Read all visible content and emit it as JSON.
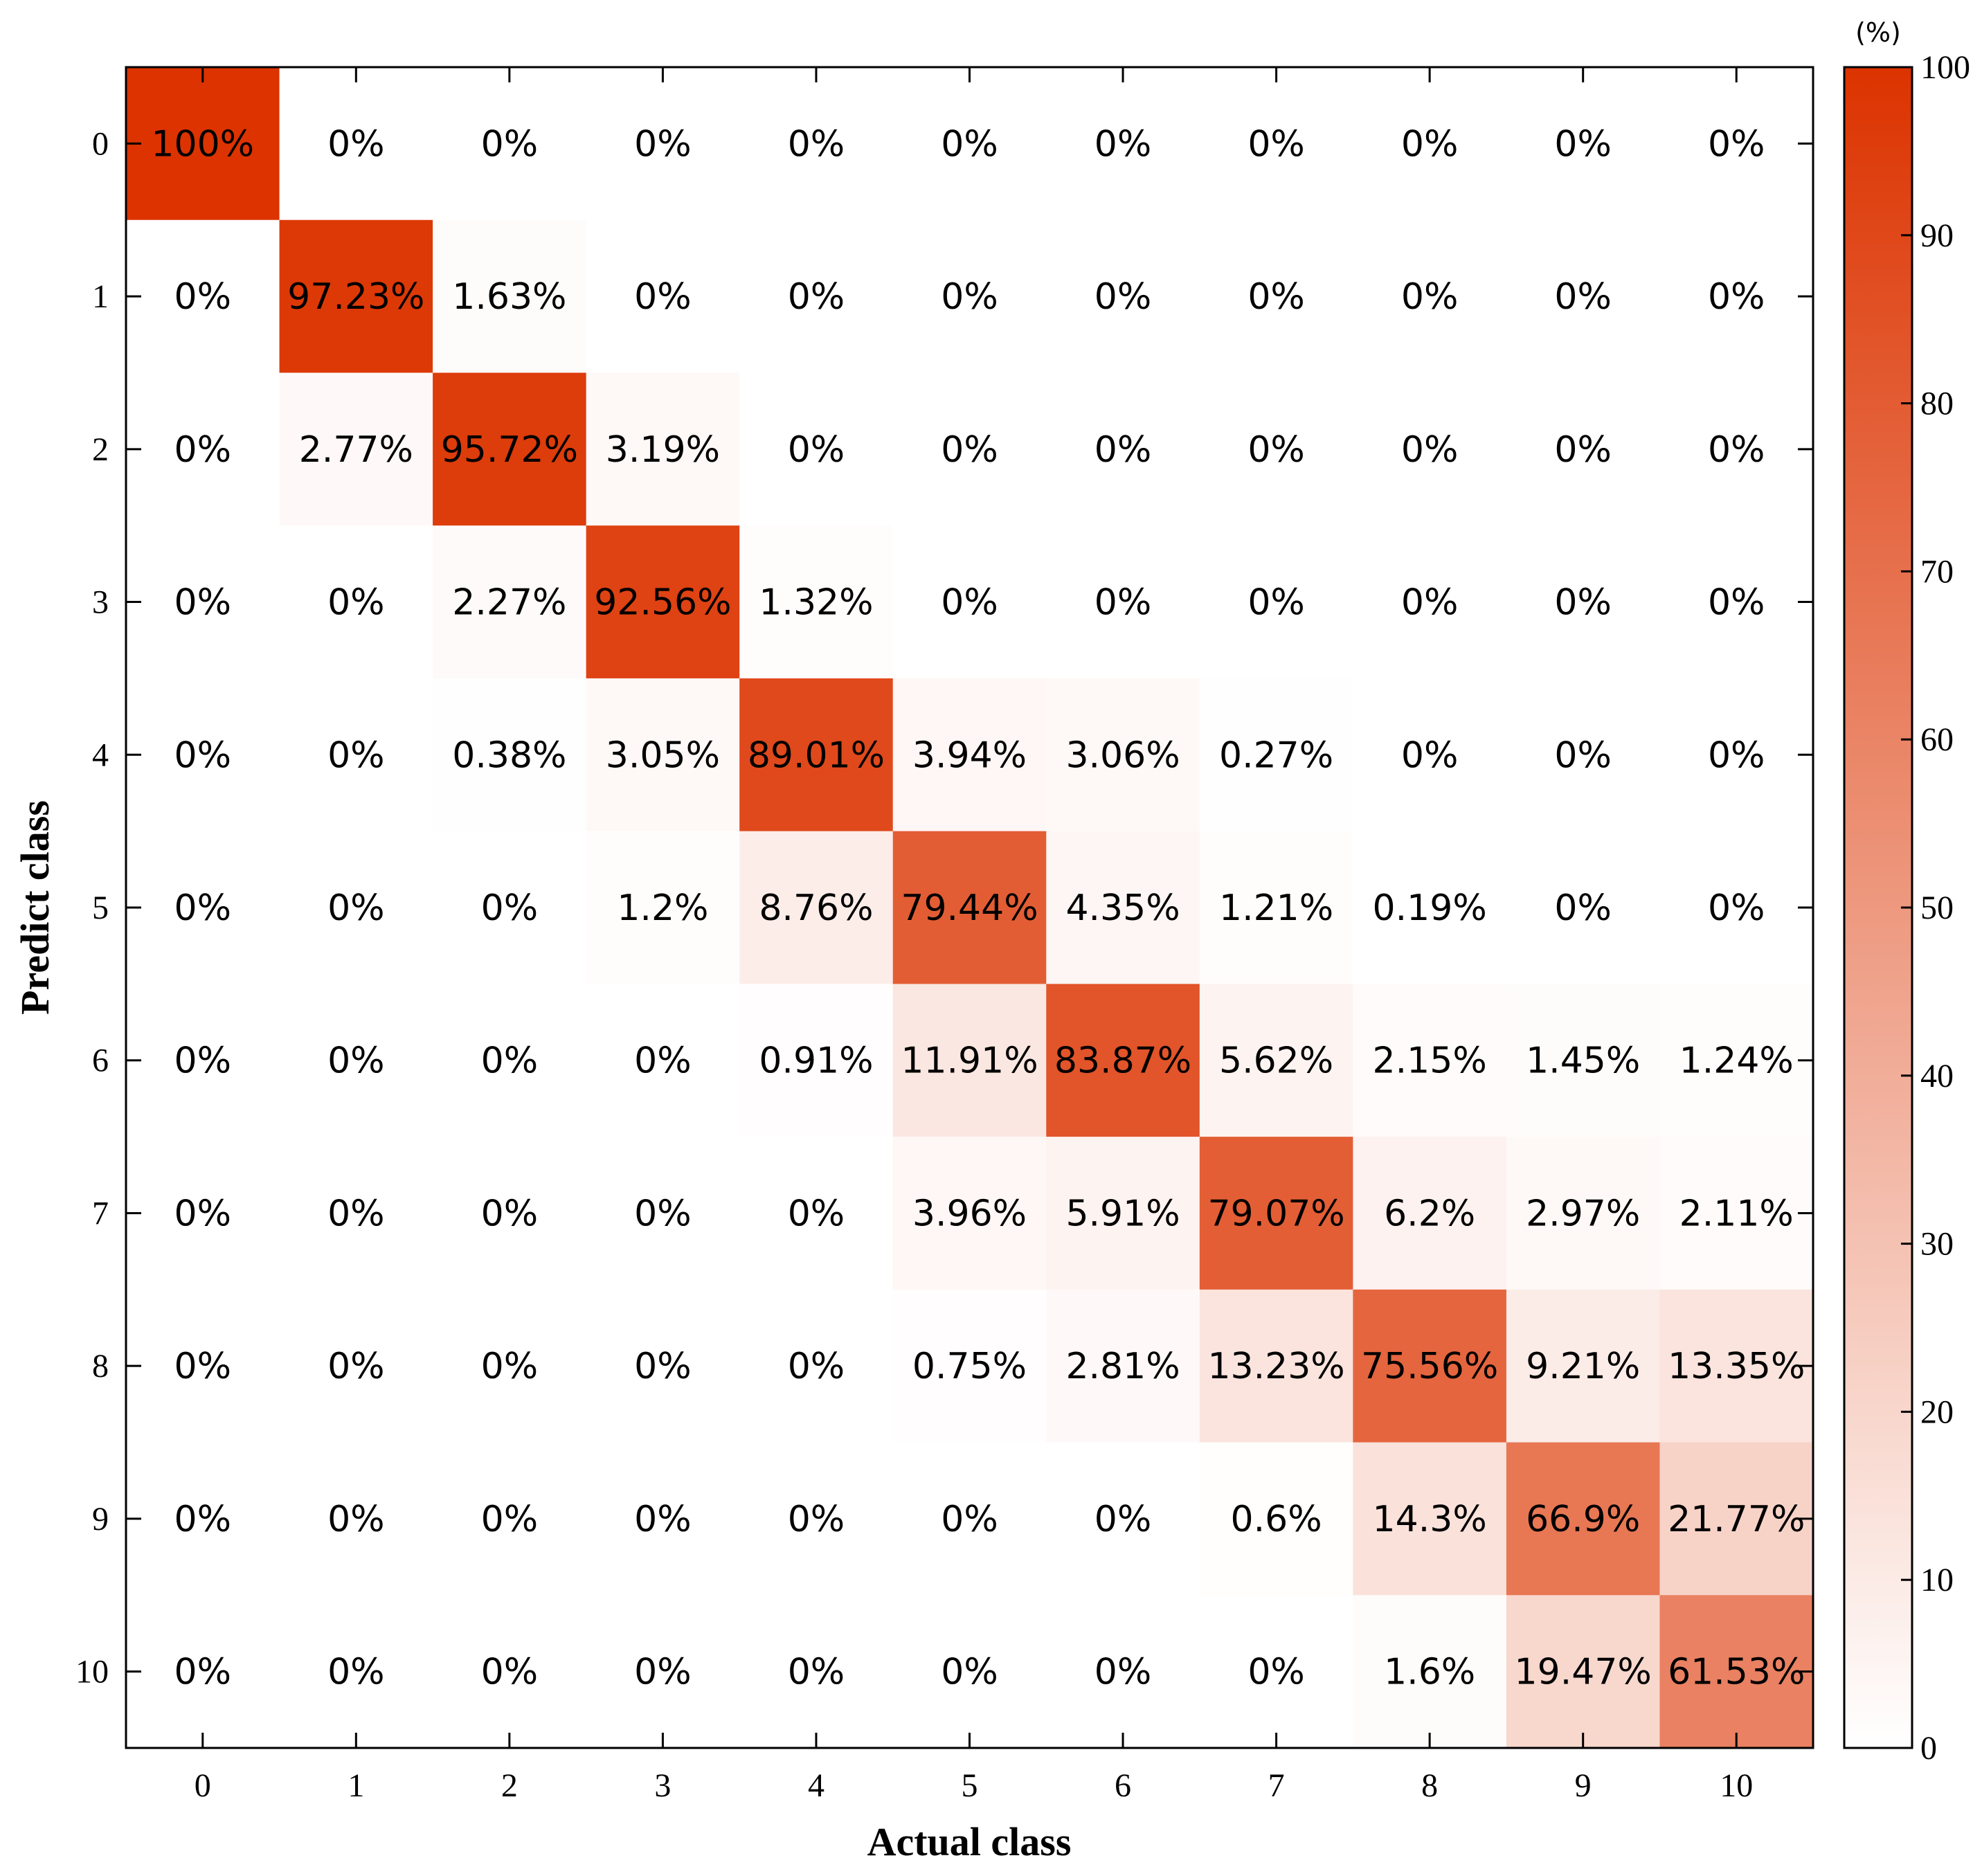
{
  "chart_data": {
    "type": "heatmap",
    "xlabel": "Actual class",
    "ylabel": "Predict class",
    "x_categories": [
      "0",
      "1",
      "2",
      "3",
      "4",
      "5",
      "6",
      "7",
      "8",
      "9",
      "10"
    ],
    "y_categories": [
      "0",
      "1",
      "2",
      "3",
      "4",
      "5",
      "6",
      "7",
      "8",
      "9",
      "10"
    ],
    "values": [
      [
        100,
        0,
        0,
        0,
        0,
        0,
        0,
        0,
        0,
        0,
        0
      ],
      [
        0,
        97.23,
        1.63,
        0,
        0,
        0,
        0,
        0,
        0,
        0,
        0
      ],
      [
        0,
        2.77,
        95.72,
        3.19,
        0,
        0,
        0,
        0,
        0,
        0,
        0
      ],
      [
        0,
        0,
        2.27,
        92.56,
        1.32,
        0,
        0,
        0,
        0,
        0,
        0
      ],
      [
        0,
        0,
        0.38,
        3.05,
        89.01,
        3.94,
        3.06,
        0.27,
        0,
        0,
        0
      ],
      [
        0,
        0,
        0,
        1.2,
        8.76,
        79.44,
        4.35,
        1.21,
        0.19,
        0,
        0
      ],
      [
        0,
        0,
        0,
        0,
        0.91,
        11.91,
        83.87,
        5.62,
        2.15,
        1.45,
        1.24
      ],
      [
        0,
        0,
        0,
        0,
        0,
        3.96,
        5.91,
        79.07,
        6.2,
        2.97,
        2.11
      ],
      [
        0,
        0,
        0,
        0,
        0,
        0.75,
        2.81,
        13.23,
        75.56,
        9.21,
        13.35
      ],
      [
        0,
        0,
        0,
        0,
        0,
        0,
        0,
        0.6,
        14.3,
        66.9,
        21.77
      ],
      [
        0,
        0,
        0,
        0,
        0,
        0,
        0,
        0,
        1.6,
        19.47,
        61.53
      ]
    ],
    "cell_labels": [
      [
        "100%",
        "0%",
        "0%",
        "0%",
        "0%",
        "0%",
        "0%",
        "0%",
        "0%",
        "0%",
        "0%"
      ],
      [
        "0%",
        "97.23%",
        "1.63%",
        "0%",
        "0%",
        "0%",
        "0%",
        "0%",
        "0%",
        "0%",
        "0%"
      ],
      [
        "0%",
        "2.77%",
        "95.72%",
        "3.19%",
        "0%",
        "0%",
        "0%",
        "0%",
        "0%",
        "0%",
        "0%"
      ],
      [
        "0%",
        "0%",
        "2.27%",
        "92.56%",
        "1.32%",
        "0%",
        "0%",
        "0%",
        "0%",
        "0%",
        "0%"
      ],
      [
        "0%",
        "0%",
        "0.38%",
        "3.05%",
        "89.01%",
        "3.94%",
        "3.06%",
        "0.27%",
        "0%",
        "0%",
        "0%"
      ],
      [
        "0%",
        "0%",
        "0%",
        "1.2%",
        "8.76%",
        "79.44%",
        "4.35%",
        "1.21%",
        "0.19%",
        "0%",
        "0%"
      ],
      [
        "0%",
        "0%",
        "0%",
        "0%",
        "0.91%",
        "11.91%",
        "83.87%",
        "5.62%",
        "2.15%",
        "1.45%",
        "1.24%"
      ],
      [
        "0%",
        "0%",
        "0%",
        "0%",
        "0%",
        "3.96%",
        "5.91%",
        "79.07%",
        "6.2%",
        "2.97%",
        "2.11%"
      ],
      [
        "0%",
        "0%",
        "0%",
        "0%",
        "0%",
        "0.75%",
        "2.81%",
        "13.23%",
        "75.56%",
        "9.21%",
        "13.35%"
      ],
      [
        "0%",
        "0%",
        "0%",
        "0%",
        "0%",
        "0%",
        "0%",
        "0.6%",
        "14.3%",
        "66.9%",
        "21.77%"
      ],
      [
        "0%",
        "0%",
        "0%",
        "0%",
        "0%",
        "0%",
        "0%",
        "0%",
        "1.6%",
        "19.47%",
        "61.53%"
      ]
    ],
    "colorbar": {
      "range": [
        0,
        100
      ],
      "ticks": [
        "0",
        "10",
        "20",
        "30",
        "40",
        "50",
        "60",
        "70",
        "80",
        "90",
        "100"
      ],
      "unit": "(%)",
      "color_low": "#ffffff",
      "color_high": "#dc3300"
    }
  }
}
